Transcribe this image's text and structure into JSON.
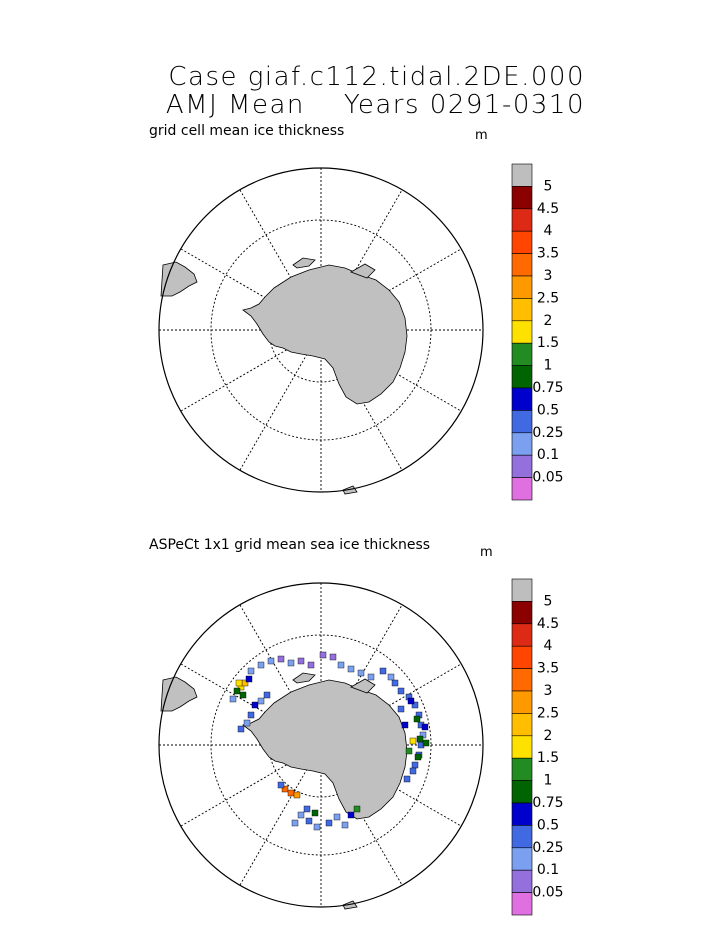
{
  "title_line1": "Case giaf.c112.tidal.2DE.000",
  "title_line2": "AMJ Mean    Years 0291-0310",
  "panels": [
    {
      "label": "grid cell mean ice thickness",
      "unit": "m"
    },
    {
      "label": "ASPeCt 1x1 grid mean sea ice thickness",
      "unit": "m"
    }
  ],
  "colorbar": {
    "levels": [
      "5",
      "4.5",
      "4",
      "3.5",
      "3",
      "2.5",
      "2",
      "1.5",
      "1",
      "0.75",
      "0.5",
      "0.25",
      "0.1",
      "0.05"
    ],
    "colors": [
      "#bebebe",
      "#8b0000",
      "#dc2a14",
      "#ff4500",
      "#ff6a00",
      "#ff9900",
      "#ffbf00",
      "#ffe100",
      "#228b22",
      "#006400",
      "#0000cd",
      "#4169e1",
      "#7ba0f0",
      "#9370db",
      "#e070e0"
    ]
  },
  "colors": {
    "land": "#c0c0c0",
    "outline": "#000000",
    "grid": "#000000"
  }
}
